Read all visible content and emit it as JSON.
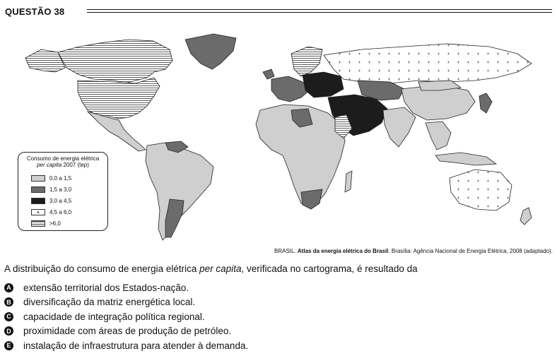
{
  "header": {
    "title": "QUESTÃO 38"
  },
  "legend": {
    "title_line1": "Consumo de energia elétrica",
    "title_italic": "per capita",
    "title_rest": " 2007 (tep)",
    "items": [
      {
        "label": "0,0 a 1,5",
        "fill": "#cfcfcf"
      },
      {
        "label": "1,5 a 3,0",
        "fill": "#6b6b6b"
      },
      {
        "label": "3,0 a 4,5",
        "fill": "#1c1c1c"
      },
      {
        "label": "4,5 a 6,0",
        "fill": "#ffffff"
      },
      {
        "label": ">6,0",
        "fill": "#ffffff"
      }
    ]
  },
  "source": {
    "author": "BRASIL. ",
    "work": "Atlas da energia elétrica do Brasil",
    "rest": ". Brasília: Agência Nacional de Energia Elétrica, 2008 (adaptado)."
  },
  "question": {
    "before": "A distribuição do consumo de energia elétrica ",
    "italic": "per capita",
    "after": ", verificada no cartograma, é resultado da"
  },
  "options": [
    {
      "letter": "A",
      "text": "extensão territorial dos Estados-nação."
    },
    {
      "letter": "B",
      "text": "diversificação da matriz energética local."
    },
    {
      "letter": "C",
      "text": "capacidade de integração política regional."
    },
    {
      "letter": "D",
      "text": "proximidade com áreas de produção de petróleo."
    },
    {
      "letter": "E",
      "text": "instalação de infraestrutura para atender à demanda."
    }
  ],
  "colors": {
    "light": "#cfcfcf",
    "medium": "#6b6b6b",
    "dark": "#1c1c1c"
  }
}
